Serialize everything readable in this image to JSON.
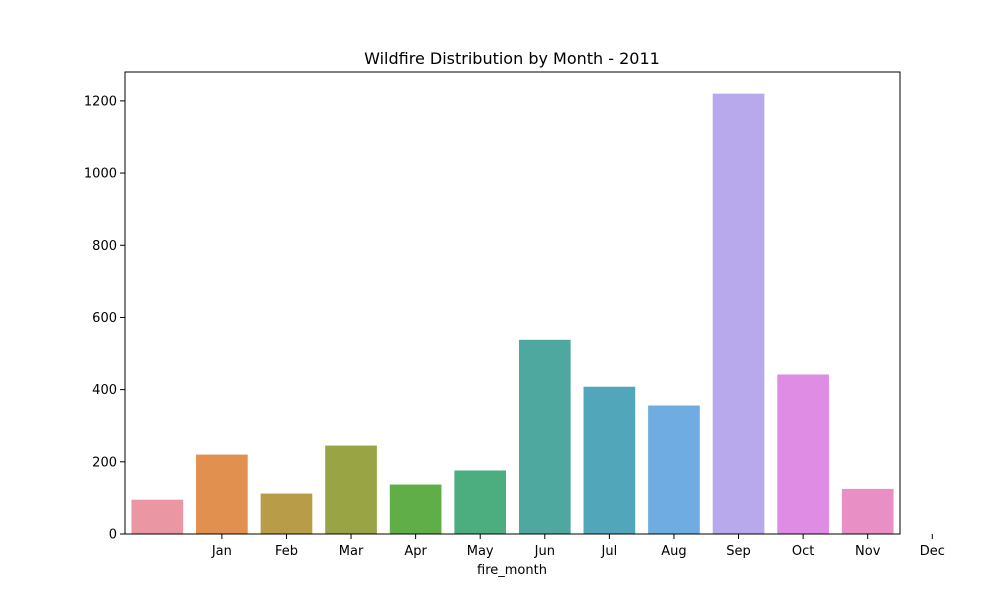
{
  "chart_data": {
    "type": "bar",
    "title": "Wildfire Distribution by Month - 2011",
    "xlabel": "fire_month",
    "ylabel": "",
    "ylim": [
      0,
      1280
    ],
    "yticks": [
      0,
      200,
      400,
      600,
      800,
      1000,
      1200
    ],
    "tick_labels": [
      "Jan",
      "Feb",
      "Mar",
      "Apr",
      "May",
      "Jun",
      "Jul",
      "Aug",
      "Sep",
      "Oct",
      "Nov",
      "Dec"
    ],
    "values": [
      95,
      220,
      112,
      245,
      137,
      176,
      538,
      408,
      356,
      1220,
      442,
      125
    ],
    "colors": [
      "#ea96a3",
      "#e1904f",
      "#b89c48",
      "#99a544",
      "#5fae47",
      "#4cad7f",
      "#4ea8a0",
      "#51a7b9",
      "#6eace1",
      "#b8a8ec",
      "#df8de4",
      "#e890c6"
    ],
    "grid": false,
    "legend": "none"
  }
}
